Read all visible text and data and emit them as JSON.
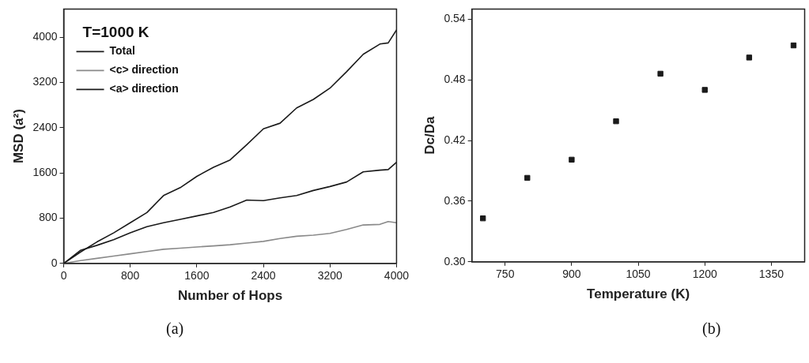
{
  "chart_data": [
    {
      "type": "line",
      "legend_title": "T=1000 K",
      "xlabel": "Number of Hops",
      "ylabel": "MSD (a²)",
      "annotations": [
        "(a)"
      ],
      "xlim": [
        0,
        4000
      ],
      "xticks": [
        0,
        800,
        1600,
        2400,
        3200,
        4000
      ],
      "ylim": [
        0,
        4500
      ],
      "yticks": [
        0,
        800,
        1600,
        2400,
        3200,
        4000
      ],
      "grid": false,
      "legend": "top left",
      "marker": "none",
      "line_style": "solid",
      "x": [
        0,
        200,
        400,
        600,
        800,
        1000,
        1200,
        1400,
        1600,
        1800,
        2000,
        2200,
        2400,
        2600,
        2800,
        3000,
        3200,
        3400,
        3600,
        3800,
        3900,
        4000
      ],
      "series": [
        {
          "name": "Total",
          "color": "#1a1a1a",
          "values": [
            0,
            200,
            380,
            540,
            720,
            900,
            1200,
            1340,
            1540,
            1700,
            1830,
            2100,
            2380,
            2480,
            2750,
            2900,
            3100,
            3390,
            3700,
            3880,
            3900,
            4130
          ]
        },
        {
          "name": "<c> direction",
          "color": "#8a8a8a",
          "values": [
            0,
            50,
            90,
            130,
            170,
            210,
            250,
            270,
            290,
            310,
            330,
            360,
            390,
            440,
            480,
            500,
            530,
            600,
            680,
            690,
            740,
            720
          ]
        },
        {
          "name": "<a> direction",
          "color": "#1a1a1a",
          "values": [
            0,
            230,
            320,
            420,
            540,
            650,
            720,
            780,
            840,
            900,
            1000,
            1120,
            1110,
            1160,
            1200,
            1290,
            1360,
            1440,
            1620,
            1650,
            1660,
            1790
          ]
        }
      ]
    },
    {
      "type": "scatter",
      "xlabel": "Temperature (K)",
      "ylabel": "Dc/Da",
      "annotations": [
        "(b)"
      ],
      "xlim": [
        675,
        1425
      ],
      "xticks": [
        750,
        900,
        1050,
        1200,
        1350
      ],
      "ylim": [
        0.3,
        0.55
      ],
      "yticks": [
        {
          "value": 0.3,
          "label": "0.30"
        },
        0.36,
        0.42,
        0.48,
        0.54
      ],
      "grid": false,
      "legend": false,
      "marker": "square",
      "x": [
        700,
        800,
        900,
        1000,
        1100,
        1200,
        1300,
        1400
      ],
      "series": [
        {
          "color": "#1a1a1a",
          "values": [
            0.343,
            0.383,
            0.401,
            0.439,
            0.486,
            0.47,
            0.502,
            0.514
          ]
        }
      ]
    }
  ]
}
